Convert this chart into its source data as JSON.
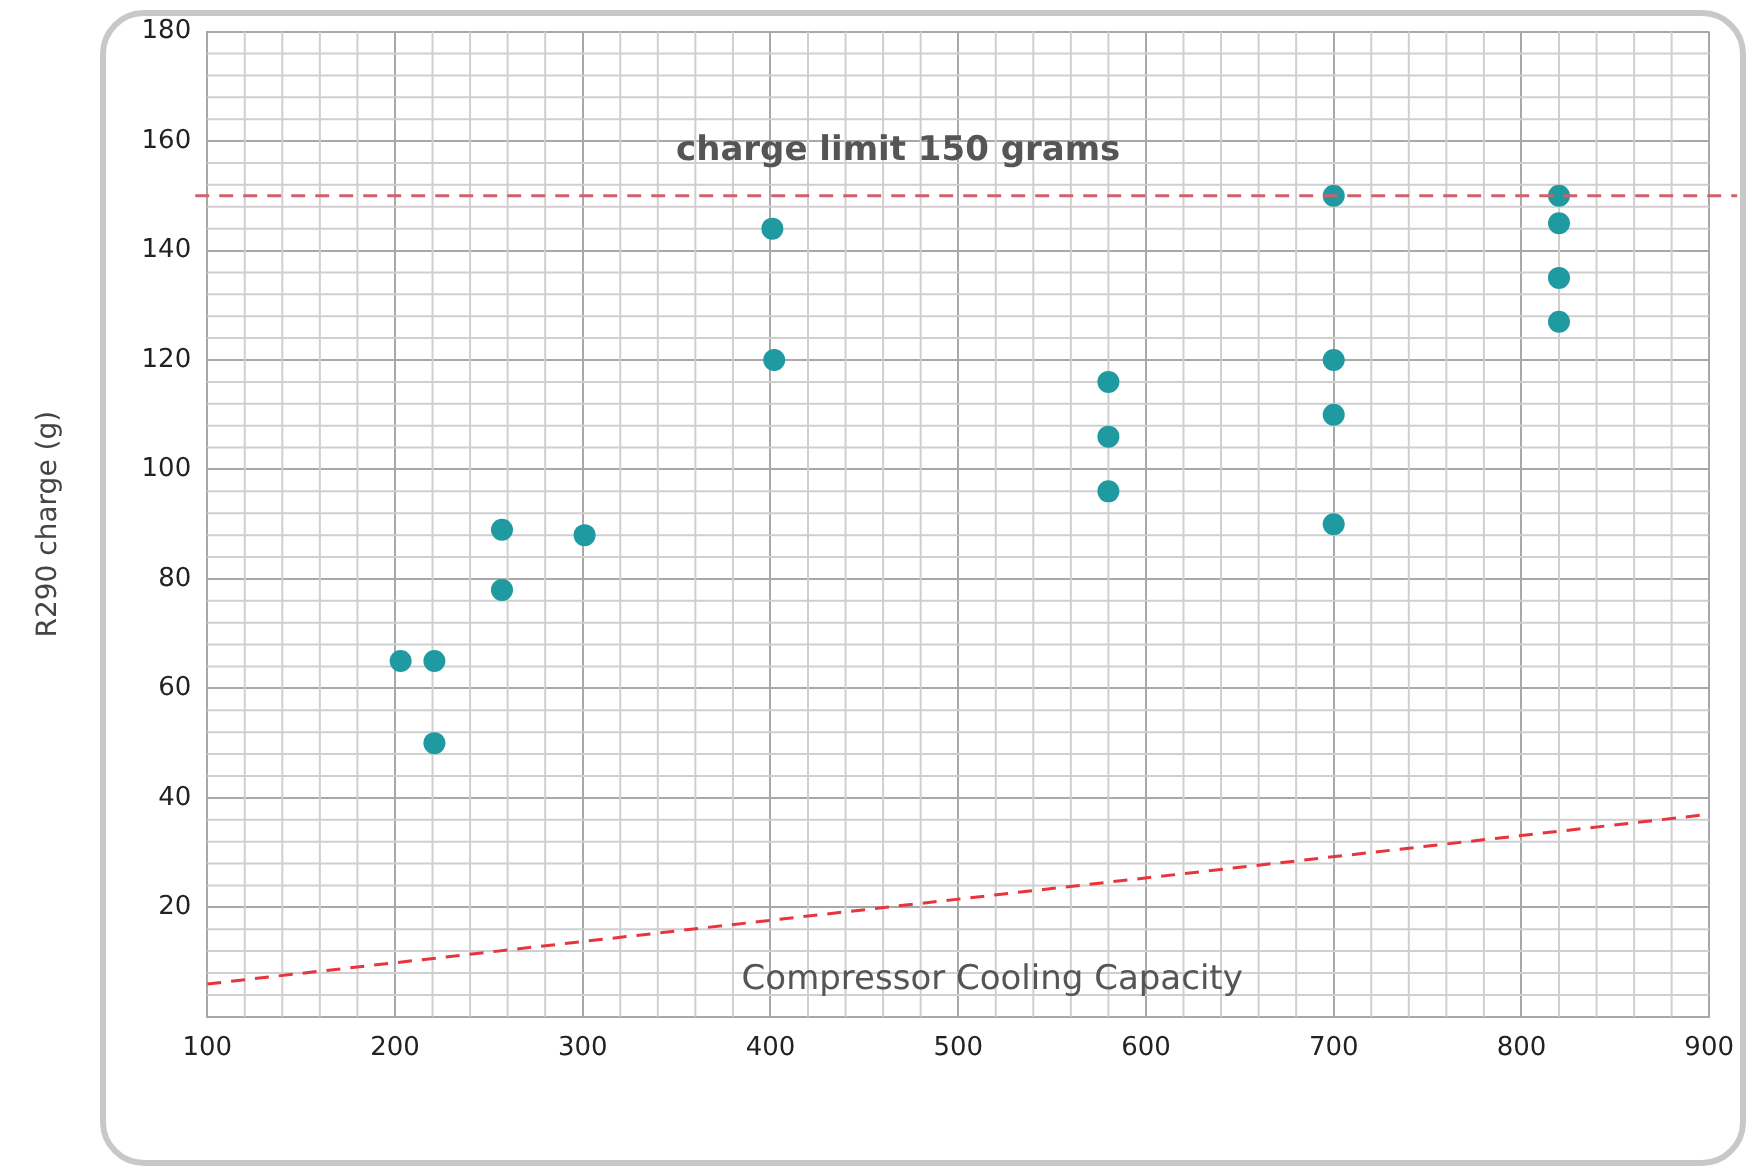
{
  "chart_data": {
    "type": "scatter",
    "xlabel": "Compressor Cooling Capacity",
    "ylabel": "R290 charge (g)",
    "xlim": [
      100,
      900
    ],
    "xticks": [
      100,
      200,
      300,
      400,
      500,
      600,
      700,
      800,
      900
    ],
    "ylim": [
      0,
      180
    ],
    "yticks": [
      20,
      40,
      60,
      80,
      100,
      120,
      140,
      160,
      180
    ],
    "grid": true,
    "marker": "circle",
    "legend": false,
    "series": [
      {
        "type": "scatter",
        "color": "#1f9aa0",
        "x": [
          203,
          221,
          221,
          257,
          257,
          301,
          401,
          402,
          580,
          580,
          580,
          700,
          700,
          700,
          700,
          820,
          820,
          820,
          820
        ],
        "values": [
          65,
          65,
          50,
          89,
          78,
          88,
          144,
          120,
          116,
          106,
          96,
          150,
          120,
          110,
          90,
          150,
          145,
          135,
          127
        ]
      },
      {
        "type": "line",
        "color": "#e8343c",
        "line_style": "dashed",
        "marker": "none",
        "x": [
          100,
          900
        ],
        "values": [
          6,
          37
        ]
      }
    ],
    "ref_lines": [
      {
        "axis": "y",
        "value": 150,
        "label": "charge limit 150 grams",
        "color": "#d0606a",
        "line_style": "dashed"
      }
    ]
  }
}
